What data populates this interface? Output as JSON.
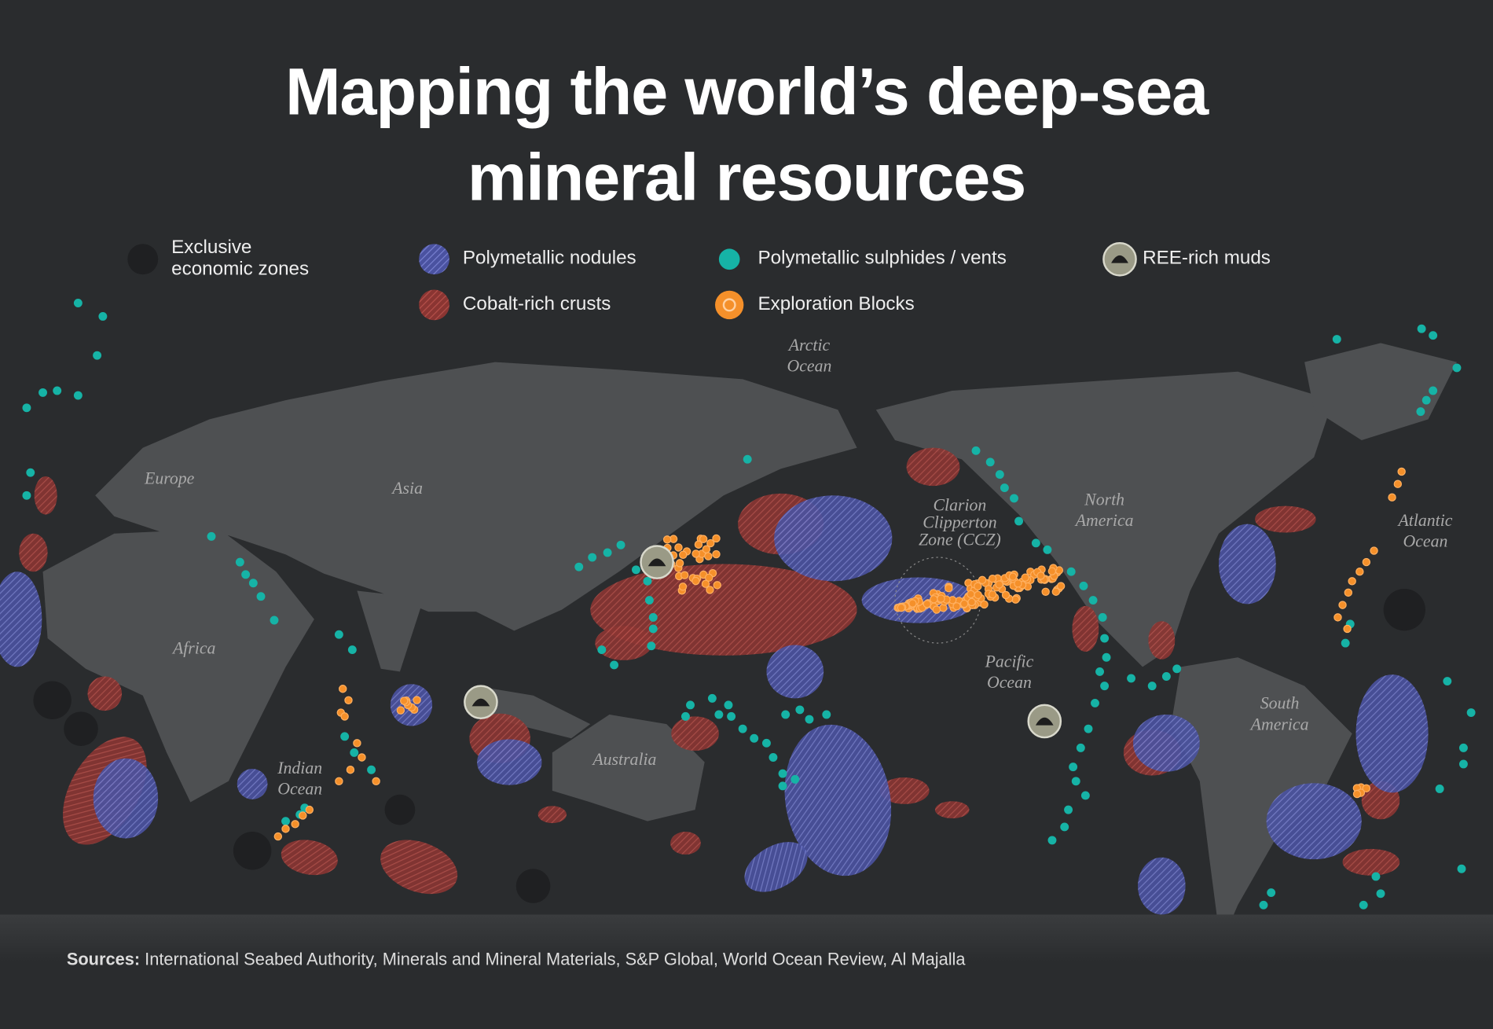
{
  "title": [
    "Mapping the world’s deep-sea",
    "mineral resources"
  ],
  "legend": [
    {
      "lines": [
        "Exclusive",
        "economic zones"
      ]
    },
    {
      "lines": [
        "Polymetallic nodules"
      ]
    },
    {
      "lines": [
        "Polymetallic sulphides / vents"
      ]
    },
    {
      "lines": [
        "REE-rich muds"
      ]
    },
    {
      "lines": [
        "Cobalt-rich crusts"
      ]
    },
    {
      "lines": [
        "Exploration Blocks"
      ]
    }
  ],
  "map_labels": [
    {
      "lines": [
        "Arctic",
        "Ocean"
      ]
    },
    {
      "lines": [
        "Europe"
      ]
    },
    {
      "lines": [
        "Asia"
      ]
    },
    {
      "lines": [
        "Africa"
      ]
    },
    {
      "lines": [
        "Indian",
        "Ocean"
      ]
    },
    {
      "lines": [
        "Australia"
      ]
    },
    {
      "lines": [
        "Clarion",
        "Clipperton",
        "Zone (CCZ)"
      ]
    },
    {
      "lines": [
        "North",
        "America"
      ]
    },
    {
      "lines": [
        "Pacific",
        "Ocean"
      ]
    },
    {
      "lines": [
        "South",
        "America"
      ]
    },
    {
      "lines": [
        "Atlantic",
        "Ocean"
      ]
    }
  ],
  "sources": {
    "label": "Sources:",
    "text": "International Seabed Authority, Minerals and Mineral Materials, S&P Global, World Ocean Review, Al Majalla"
  }
}
